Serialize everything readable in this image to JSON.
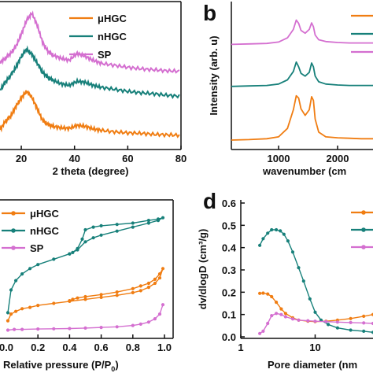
{
  "colors": {
    "orange": "#f07d12",
    "teal": "#17807a",
    "pink": "#d46fd0"
  },
  "chart_data": [
    {
      "panel": "a",
      "type": "line",
      "xlabel": "2 theta (degree)",
      "ylabel": "",
      "xlim": [
        12,
        80
      ],
      "x_ticks": [
        20,
        40,
        60,
        80
      ],
      "y_ticks": [],
      "legend": "top-right",
      "series": [
        {
          "name": "μHGC",
          "color": "#f07d12",
          "x": [
            12,
            14,
            16,
            18,
            20,
            22,
            24,
            26,
            28,
            30,
            32,
            35,
            38,
            41,
            44,
            47,
            50,
            55,
            60,
            65,
            70,
            75,
            80
          ],
          "y": [
            0.33,
            0.5,
            0.6,
            0.8,
            0.97,
            1.1,
            0.98,
            0.75,
            0.52,
            0.44,
            0.4,
            0.37,
            0.36,
            0.42,
            0.4,
            0.35,
            0.32,
            0.29,
            0.27,
            0.26,
            0.24,
            0.23,
            0.22
          ]
        },
        {
          "name": "nHGC",
          "color": "#17807a",
          "x": [
            12,
            14,
            16,
            18,
            20,
            22,
            24,
            26,
            28,
            30,
            32,
            35,
            38,
            41,
            44,
            47,
            50,
            55,
            60,
            65,
            70,
            75,
            80
          ],
          "y": [
            1.12,
            1.28,
            1.42,
            1.58,
            1.8,
            1.94,
            1.84,
            1.66,
            1.48,
            1.38,
            1.32,
            1.25,
            1.22,
            1.3,
            1.28,
            1.22,
            1.18,
            1.14,
            1.1,
            1.07,
            1.05,
            1.02,
            1.0
          ]
        },
        {
          "name": "SP",
          "color": "#d46fd0",
          "x": [
            12,
            14,
            16,
            18,
            20,
            22,
            24,
            26,
            28,
            30,
            32,
            35,
            38,
            41,
            44,
            47,
            50,
            55,
            60,
            65,
            70,
            75,
            80
          ],
          "y": [
            1.68,
            1.76,
            1.86,
            2.0,
            2.24,
            2.52,
            2.66,
            2.42,
            2.08,
            1.9,
            1.82,
            1.76,
            1.72,
            1.86,
            1.8,
            1.72,
            1.66,
            1.62,
            1.58,
            1.55,
            1.53,
            1.51,
            1.5
          ]
        }
      ]
    },
    {
      "panel": "b",
      "type": "line",
      "xlabel": "wavenumber (cm",
      "ylabel": "Intensity (arb. u)",
      "xlim": [
        200,
        2600
      ],
      "x_ticks": [
        1000,
        2000
      ],
      "y_ticks": [],
      "legend": "top-right",
      "series": [
        {
          "name": "",
          "color": "#f07d12",
          "x": [
            200,
            500,
            800,
            1000,
            1150,
            1250,
            1300,
            1340,
            1380,
            1450,
            1520,
            1560,
            1590,
            1620,
            1680,
            1800,
            2000,
            2200,
            2400,
            2600
          ],
          "y": [
            0.05,
            0.06,
            0.08,
            0.12,
            0.3,
            0.7,
            1.0,
            0.95,
            0.72,
            0.58,
            0.7,
            0.98,
            0.9,
            0.5,
            0.22,
            0.12,
            0.1,
            0.09,
            0.08,
            0.08
          ]
        },
        {
          "name": "",
          "color": "#17807a",
          "x": [
            200,
            500,
            800,
            1000,
            1150,
            1250,
            1300,
            1340,
            1380,
            1450,
            1520,
            1560,
            1590,
            1620,
            1680,
            1800,
            2000,
            2200,
            2400,
            2600
          ],
          "y": [
            1.2,
            1.21,
            1.22,
            1.25,
            1.34,
            1.52,
            1.72,
            1.62,
            1.48,
            1.42,
            1.5,
            1.7,
            1.62,
            1.42,
            1.3,
            1.25,
            1.23,
            1.22,
            1.22,
            1.22
          ]
        },
        {
          "name": "",
          "color": "#d46fd0",
          "x": [
            200,
            500,
            800,
            1000,
            1150,
            1250,
            1300,
            1340,
            1380,
            1450,
            1520,
            1560,
            1590,
            1620,
            1680,
            1800,
            2000,
            2200,
            2400,
            2600
          ],
          "y": [
            2.1,
            2.11,
            2.12,
            2.15,
            2.24,
            2.42,
            2.62,
            2.55,
            2.4,
            2.34,
            2.42,
            2.56,
            2.48,
            2.3,
            2.2,
            2.16,
            2.14,
            2.13,
            2.13,
            2.13
          ]
        }
      ]
    },
    {
      "panel": "c",
      "type": "line",
      "xlabel": "Relative pressure (P/P",
      "xlabel_sub": "0",
      "xlabel_end": ")",
      "ylabel": "",
      "xlim": [
        0,
        1.05
      ],
      "ylim": [
        0,
        1
      ],
      "x_ticks": [
        0.2,
        0.4,
        0.6,
        0.8,
        1.0
      ],
      "x_tick_labels": [
        "0.2",
        "0.4",
        "0.6",
        "0.8",
        "1.0"
      ],
      "x_first_label": "0.0",
      "y_ticks": [],
      "legend": "top-left",
      "series": [
        {
          "name": "μHGC",
          "color": "#f07d12",
          "x": [
            0.01,
            0.03,
            0.06,
            0.1,
            0.15,
            0.2,
            0.3,
            0.4,
            0.5,
            0.6,
            0.7,
            0.8,
            0.85,
            0.9,
            0.94,
            0.97,
            0.99,
            0.97,
            0.94,
            0.9,
            0.85,
            0.8,
            0.7,
            0.6,
            0.5,
            0.45,
            0.42,
            0.4
          ],
          "y": [
            0.12,
            0.17,
            0.19,
            0.21,
            0.22,
            0.235,
            0.25,
            0.265,
            0.28,
            0.295,
            0.31,
            0.33,
            0.345,
            0.37,
            0.4,
            0.44,
            0.51,
            0.47,
            0.43,
            0.4,
            0.38,
            0.36,
            0.335,
            0.315,
            0.3,
            0.29,
            0.28,
            0.27
          ]
        },
        {
          "name": "nHGC",
          "color": "#17807a",
          "x": [
            0.01,
            0.03,
            0.06,
            0.1,
            0.15,
            0.2,
            0.3,
            0.4,
            0.45,
            0.5,
            0.55,
            0.6,
            0.7,
            0.8,
            0.9,
            0.96,
            0.99,
            0.96,
            0.9,
            0.8,
            0.7,
            0.6,
            0.55,
            0.5,
            0.48,
            0.45,
            0.42,
            0.4
          ],
          "y": [
            0.18,
            0.35,
            0.42,
            0.47,
            0.51,
            0.54,
            0.58,
            0.62,
            0.65,
            0.71,
            0.74,
            0.76,
            0.79,
            0.82,
            0.85,
            0.87,
            0.89,
            0.88,
            0.87,
            0.85,
            0.84,
            0.83,
            0.82,
            0.8,
            0.73,
            0.66,
            0.63,
            0.62
          ]
        },
        {
          "name": "SP",
          "color": "#d46fd0",
          "x": [
            0.01,
            0.05,
            0.1,
            0.2,
            0.3,
            0.4,
            0.5,
            0.6,
            0.7,
            0.8,
            0.85,
            0.9,
            0.94,
            0.97,
            0.99
          ],
          "y": [
            0.05,
            0.055,
            0.055,
            0.058,
            0.06,
            0.062,
            0.065,
            0.07,
            0.075,
            0.085,
            0.095,
            0.11,
            0.135,
            0.17,
            0.24
          ]
        }
      ]
    },
    {
      "panel": "d",
      "type": "line",
      "xlabel": "Pore diameter (nm",
      "ylabel": "dv/dlogD (cm³/g)",
      "xscale": "log",
      "xlim": [
        1,
        60
      ],
      "ylim": [
        0,
        0.6
      ],
      "x_ticks": [
        1,
        10
      ],
      "y_ticks": [
        0.0,
        0.1,
        0.2,
        0.3,
        0.4,
        0.5,
        0.6
      ],
      "y_tick_labels": [
        "0.0",
        "0.1",
        "0.2",
        "0.3",
        "0.4",
        "0.5",
        "0.6"
      ],
      "legend": "top-right",
      "series": [
        {
          "name": "",
          "color": "#f07d12",
          "x": [
            1.8,
            2.0,
            2.3,
            2.6,
            3.0,
            3.5,
            4.0,
            5.0,
            6.0,
            8.0,
            10,
            14,
            20,
            30,
            45,
            60
          ],
          "y": [
            0.195,
            0.196,
            0.192,
            0.18,
            0.155,
            0.125,
            0.105,
            0.085,
            0.075,
            0.07,
            0.068,
            0.07,
            0.075,
            0.082,
            0.092,
            0.1
          ]
        },
        {
          "name": "",
          "color": "#17807a",
          "x": [
            1.8,
            2.0,
            2.3,
            2.6,
            3.0,
            3.4,
            3.8,
            4.3,
            5.0,
            6.0,
            7.0,
            8.5,
            10,
            12,
            15,
            20,
            30,
            45,
            60
          ],
          "y": [
            0.41,
            0.44,
            0.465,
            0.48,
            0.48,
            0.475,
            0.46,
            0.43,
            0.38,
            0.31,
            0.25,
            0.17,
            0.11,
            0.075,
            0.055,
            0.04,
            0.03,
            0.025,
            0.02
          ]
        },
        {
          "name": "",
          "color": "#d46fd0",
          "x": [
            1.8,
            2.0,
            2.3,
            2.6,
            3.0,
            3.5,
            4.0,
            5.0,
            6.0,
            8.0,
            10,
            14,
            20,
            30,
            45,
            60
          ],
          "y": [
            0.015,
            0.025,
            0.06,
            0.095,
            0.105,
            0.1,
            0.09,
            0.08,
            0.075,
            0.072,
            0.07,
            0.068,
            0.066,
            0.064,
            0.062,
            0.06
          ]
        }
      ]
    }
  ],
  "panel_labels": {
    "b": "b",
    "d": "d"
  }
}
